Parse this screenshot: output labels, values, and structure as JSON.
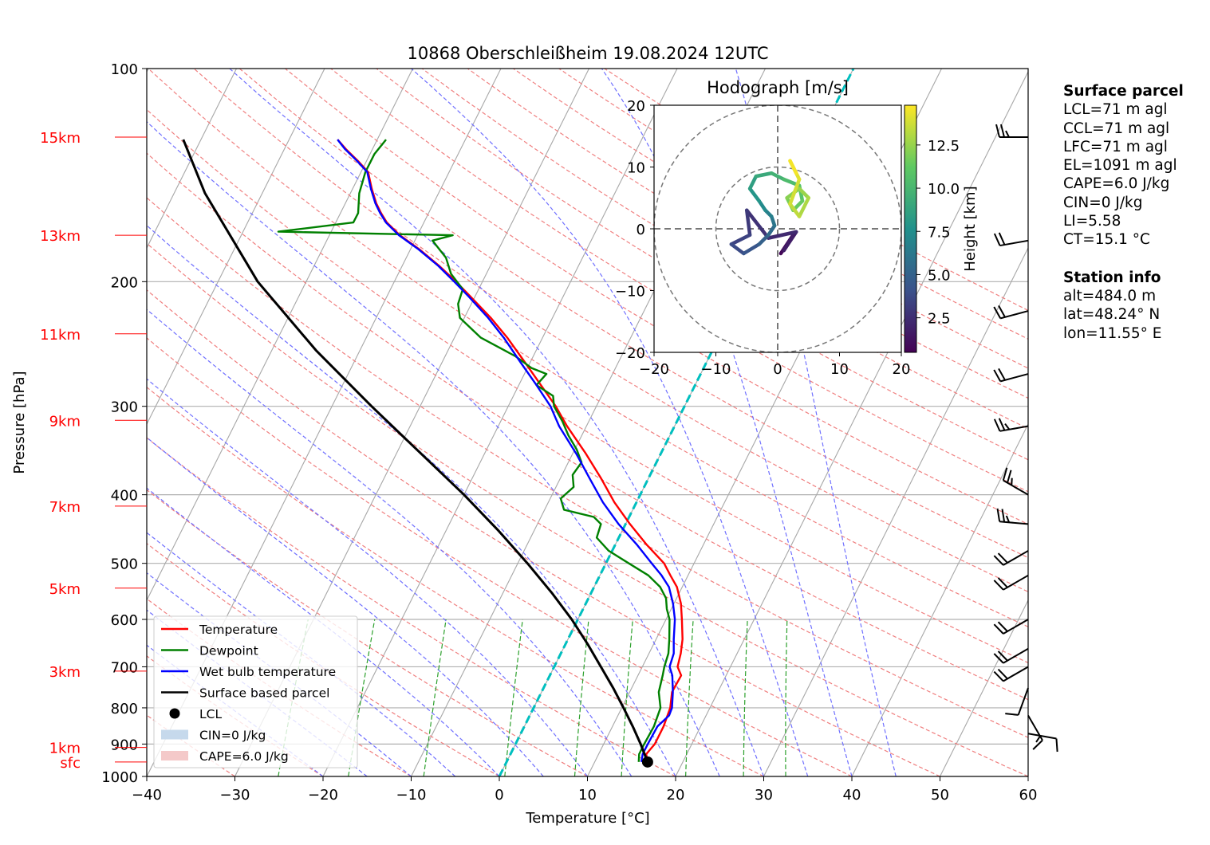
{
  "chart_data": {
    "type": "skew-t",
    "title": "10868 Oberschleißheim 19.08.2024 12UTC",
    "xlabel": "Temperature [°C]",
    "ylabel": "Pressure [hPa]",
    "xlim": [
      -40,
      60
    ],
    "ylim": [
      1000,
      100
    ],
    "x_ticks": [
      "−40",
      "−30",
      "−20",
      "−10",
      "0",
      "10",
      "20",
      "30",
      "40",
      "50",
      "60"
    ],
    "y_ticks": [
      {
        "p": 100,
        "label": "100"
      },
      {
        "p": 200,
        "label": "200"
      },
      {
        "p": 300,
        "label": "300"
      },
      {
        "p": 400,
        "label": "400"
      },
      {
        "p": 500,
        "label": "500"
      },
      {
        "p": 600,
        "label": "600"
      },
      {
        "p": 700,
        "label": "700"
      },
      {
        "p": 800,
        "label": "800"
      },
      {
        "p": 900,
        "label": "900"
      },
      {
        "p": 1000,
        "label": "1000"
      }
    ],
    "height_labels": [
      {
        "label": "15km",
        "p": 125
      },
      {
        "label": "13km",
        "p": 172
      },
      {
        "label": "11km",
        "p": 237
      },
      {
        "label": "9km",
        "p": 314
      },
      {
        "label": "7km",
        "p": 415
      },
      {
        "label": "5km",
        "p": 542
      },
      {
        "label": "3km",
        "p": 710
      },
      {
        "label": "1km",
        "p": 910
      },
      {
        "label": "sfc",
        "p": 954
      }
    ],
    "legend_position": "lower left",
    "legend": [
      {
        "label": "Temperature",
        "color": "#ff0000",
        "kind": "line"
      },
      {
        "label": "Dewpoint",
        "color": "#008000",
        "kind": "line"
      },
      {
        "label": "Wet bulb temperature",
        "color": "#0000ff",
        "kind": "line"
      },
      {
        "label": "Surface based parcel",
        "color": "#000000",
        "kind": "line"
      },
      {
        "label": "LCL",
        "color": "#000000",
        "kind": "dot"
      },
      {
        "label": "CIN=0 J/kg",
        "color": "#c6d9ec",
        "kind": "patch"
      },
      {
        "label": "CAPE=6.0 J/kg",
        "color": "#f4c9c9",
        "kind": "patch"
      }
    ],
    "series": [
      {
        "name": "Temperature",
        "color": "#ff0000",
        "points": [
          [
            954,
            16.0
          ],
          [
            930,
            15.4
          ],
          [
            900,
            15.8
          ],
          [
            850,
            15.8
          ],
          [
            800,
            15.5
          ],
          [
            760,
            14.8
          ],
          [
            720,
            14.9
          ],
          [
            700,
            14.0
          ],
          [
            670,
            13.6
          ],
          [
            640,
            13.0
          ],
          [
            600,
            11.8
          ],
          [
            570,
            10.8
          ],
          [
            540,
            9.4
          ],
          [
            520,
            8.0
          ],
          [
            500,
            6.6
          ],
          [
            470,
            3.5
          ],
          [
            440,
            0.5
          ],
          [
            410,
            -2.5
          ],
          [
            380,
            -5.3
          ],
          [
            350,
            -8.5
          ],
          [
            320,
            -12.2
          ],
          [
            300,
            -14.6
          ],
          [
            280,
            -17.5
          ],
          [
            260,
            -20.6
          ],
          [
            240,
            -24.0
          ],
          [
            225,
            -27.0
          ],
          [
            210,
            -30.5
          ],
          [
            200,
            -33.0
          ],
          [
            190,
            -35.8
          ],
          [
            180,
            -39.0
          ],
          [
            172,
            -42.0
          ],
          [
            165,
            -44.2
          ],
          [
            160,
            -45.4
          ],
          [
            155,
            -46.5
          ],
          [
            148,
            -47.8
          ],
          [
            140,
            -49.2
          ],
          [
            135,
            -51.0
          ],
          [
            130,
            -53.0
          ],
          [
            126,
            -54.5
          ]
        ]
      },
      {
        "name": "Dewpoint",
        "color": "#008000",
        "points": [
          [
            954,
            15.0
          ],
          [
            930,
            14.6
          ],
          [
            900,
            14.6
          ],
          [
            850,
            14.7
          ],
          [
            800,
            14.4
          ],
          [
            760,
            13.3
          ],
          [
            720,
            12.8
          ],
          [
            700,
            12.5
          ],
          [
            670,
            12.2
          ],
          [
            640,
            11.5
          ],
          [
            600,
            10.4
          ],
          [
            580,
            9.5
          ],
          [
            560,
            8.8
          ],
          [
            540,
            7.5
          ],
          [
            520,
            5.5
          ],
          [
            500,
            2.6
          ],
          [
            480,
            -0.4
          ],
          [
            460,
            -2.5
          ],
          [
            440,
            -2.8
          ],
          [
            430,
            -4.0
          ],
          [
            420,
            -7.8
          ],
          [
            405,
            -8.8
          ],
          [
            390,
            -8.0
          ],
          [
            375,
            -8.8
          ],
          [
            360,
            -8.5
          ],
          [
            345,
            -9.8
          ],
          [
            330,
            -11.5
          ],
          [
            315,
            -13.0
          ],
          [
            300,
            -14.8
          ],
          [
            290,
            -15.5
          ],
          [
            280,
            -18.0
          ],
          [
            270,
            -17.5
          ],
          [
            265,
            -19.5
          ],
          [
            255,
            -22.0
          ],
          [
            240,
            -27.0
          ],
          [
            225,
            -30.5
          ],
          [
            215,
            -31.5
          ],
          [
            205,
            -31.8
          ],
          [
            195,
            -34.0
          ],
          [
            185,
            -35.5
          ],
          [
            175,
            -38.0
          ],
          [
            172,
            -36.0
          ],
          [
            170,
            -56.0
          ],
          [
            165,
            -48.0
          ],
          [
            160,
            -48.0
          ],
          [
            150,
            -49.0
          ],
          [
            140,
            -49.5
          ],
          [
            132,
            -49.5
          ],
          [
            126,
            -49.0
          ]
        ]
      },
      {
        "name": "Wet bulb temperature",
        "color": "#0000ff",
        "points": [
          [
            954,
            15.3
          ],
          [
            930,
            15.0
          ],
          [
            900,
            15.0
          ],
          [
            850,
            15.1
          ],
          [
            820,
            15.8
          ],
          [
            800,
            15.7
          ],
          [
            760,
            14.9
          ],
          [
            720,
            13.9
          ],
          [
            700,
            13.1
          ],
          [
            670,
            12.8
          ],
          [
            640,
            12.0
          ],
          [
            600,
            11.0
          ],
          [
            570,
            9.9
          ],
          [
            540,
            8.5
          ],
          [
            520,
            7.0
          ],
          [
            500,
            5.2
          ],
          [
            470,
            2.4
          ],
          [
            440,
            -0.8
          ],
          [
            410,
            -3.8
          ],
          [
            380,
            -6.6
          ],
          [
            350,
            -9.6
          ],
          [
            320,
            -13.1
          ],
          [
            300,
            -15.2
          ],
          [
            280,
            -18.0
          ],
          [
            260,
            -21.1
          ],
          [
            240,
            -24.4
          ],
          [
            225,
            -27.3
          ],
          [
            210,
            -30.7
          ],
          [
            200,
            -33.2
          ],
          [
            190,
            -35.9
          ],
          [
            180,
            -39.1
          ],
          [
            172,
            -42.1
          ],
          [
            165,
            -44.3
          ],
          [
            160,
            -45.5
          ],
          [
            155,
            -46.6
          ],
          [
            148,
            -47.9
          ],
          [
            140,
            -49.3
          ],
          [
            135,
            -51.1
          ],
          [
            130,
            -53.1
          ],
          [
            126,
            -54.5
          ]
        ]
      },
      {
        "name": "Surface based parcel",
        "color": "#000000",
        "points": [
          [
            954,
            16.0
          ],
          [
            900,
            14.2
          ],
          [
            850,
            12.3
          ],
          [
            800,
            10.2
          ],
          [
            750,
            7.9
          ],
          [
            700,
            5.3
          ],
          [
            650,
            2.5
          ],
          [
            600,
            -0.7
          ],
          [
            550,
            -4.5
          ],
          [
            500,
            -8.9
          ],
          [
            450,
            -14.0
          ],
          [
            400,
            -20.0
          ],
          [
            350,
            -27.2
          ],
          [
            300,
            -35.5
          ],
          [
            250,
            -45.0
          ],
          [
            200,
            -55.5
          ],
          [
            150,
            -66.5
          ],
          [
            126,
            -72.0
          ]
        ]
      }
    ],
    "lcl": {
      "p": 954,
      "t": 16.0
    },
    "hodograph": {
      "title": "Hodograph [m/s]",
      "xlim": [
        -20,
        20
      ],
      "ylim": [
        -20,
        20
      ],
      "ticks": [
        "−20",
        "−10",
        "0",
        "10",
        "20"
      ],
      "rings": [
        10,
        20
      ],
      "colorbar": {
        "label": "Height [km]",
        "ticks": [
          "2.5",
          "5.0",
          "7.5",
          "10.0",
          "12.5"
        ],
        "range": [
          0.5,
          14.8
        ]
      },
      "points": [
        [
          0.5,
          -4.0,
          0.5
        ],
        [
          2.5,
          -1.0,
          1.0
        ],
        [
          1.0,
          -3.5,
          1.5
        ],
        [
          3.0,
          -0.5,
          2.0
        ],
        [
          -1.5,
          -1.5,
          2.5
        ],
        [
          -5.0,
          3.0,
          2.8
        ],
        [
          -4.5,
          -1.0,
          3.2
        ],
        [
          -7.5,
          -2.5,
          3.6
        ],
        [
          -5.5,
          -4.0,
          4.0
        ],
        [
          -3.0,
          -2.5,
          4.6
        ],
        [
          -1.5,
          -1.0,
          5.2
        ],
        [
          -0.5,
          0.5,
          5.8
        ],
        [
          -1.0,
          2.0,
          6.4
        ],
        [
          -2.0,
          3.0,
          7.0
        ],
        [
          -3.0,
          4.5,
          7.6
        ],
        [
          -4.5,
          6.5,
          8.2
        ],
        [
          -3.5,
          8.5,
          8.8
        ],
        [
          -1.0,
          9.0,
          9.4
        ],
        [
          1.0,
          8.0,
          10.0
        ],
        [
          3.5,
          7.0,
          10.6
        ],
        [
          4.0,
          4.5,
          11.2
        ],
        [
          2.5,
          3.0,
          11.6
        ],
        [
          1.5,
          5.0,
          12.0
        ],
        [
          3.5,
          6.5,
          12.4
        ],
        [
          5.0,
          5.0,
          12.8
        ],
        [
          3.5,
          2.0,
          13.2
        ],
        [
          2.0,
          4.0,
          13.6
        ],
        [
          3.5,
          8.0,
          14.0
        ],
        [
          2.0,
          11.0,
          14.4
        ],
        [
          3.0,
          9.0,
          14.8
        ]
      ]
    },
    "wind_barbs": [
      {
        "p": 125,
        "dir": 270,
        "spd": 25
      },
      {
        "p": 175,
        "dir": 260,
        "spd": 20
      },
      {
        "p": 220,
        "dir": 255,
        "spd": 20
      },
      {
        "p": 270,
        "dir": 255,
        "spd": 20
      },
      {
        "p": 320,
        "dir": 260,
        "spd": 25
      },
      {
        "p": 400,
        "dir": 300,
        "spd": 25
      },
      {
        "p": 440,
        "dir": 275,
        "spd": 25
      },
      {
        "p": 480,
        "dir": 240,
        "spd": 20
      },
      {
        "p": 520,
        "dir": 240,
        "spd": 20
      },
      {
        "p": 600,
        "dir": 240,
        "spd": 20
      },
      {
        "p": 660,
        "dir": 240,
        "spd": 20
      },
      {
        "p": 700,
        "dir": 240,
        "spd": 20
      },
      {
        "p": 750,
        "dir": 200,
        "spd": 10
      },
      {
        "p": 820,
        "dir": 150,
        "spd": 15
      },
      {
        "p": 870,
        "dir": 100,
        "spd": 10
      }
    ]
  },
  "surface_parcel": {
    "heading": "Surface parcel",
    "lines": [
      "LCL=71 m agl",
      "CCL=71 m agl",
      "LFC=71 m agl",
      "EL=1091 m agl",
      "CAPE=6.0 J/kg",
      "CIN=0 J/kg",
      "LI=5.58",
      "CT=15.1 °C"
    ]
  },
  "station_info": {
    "heading": "Station info",
    "lines": [
      "alt=484.0 m",
      "lat=48.24° N",
      "lon=11.55° E"
    ]
  }
}
